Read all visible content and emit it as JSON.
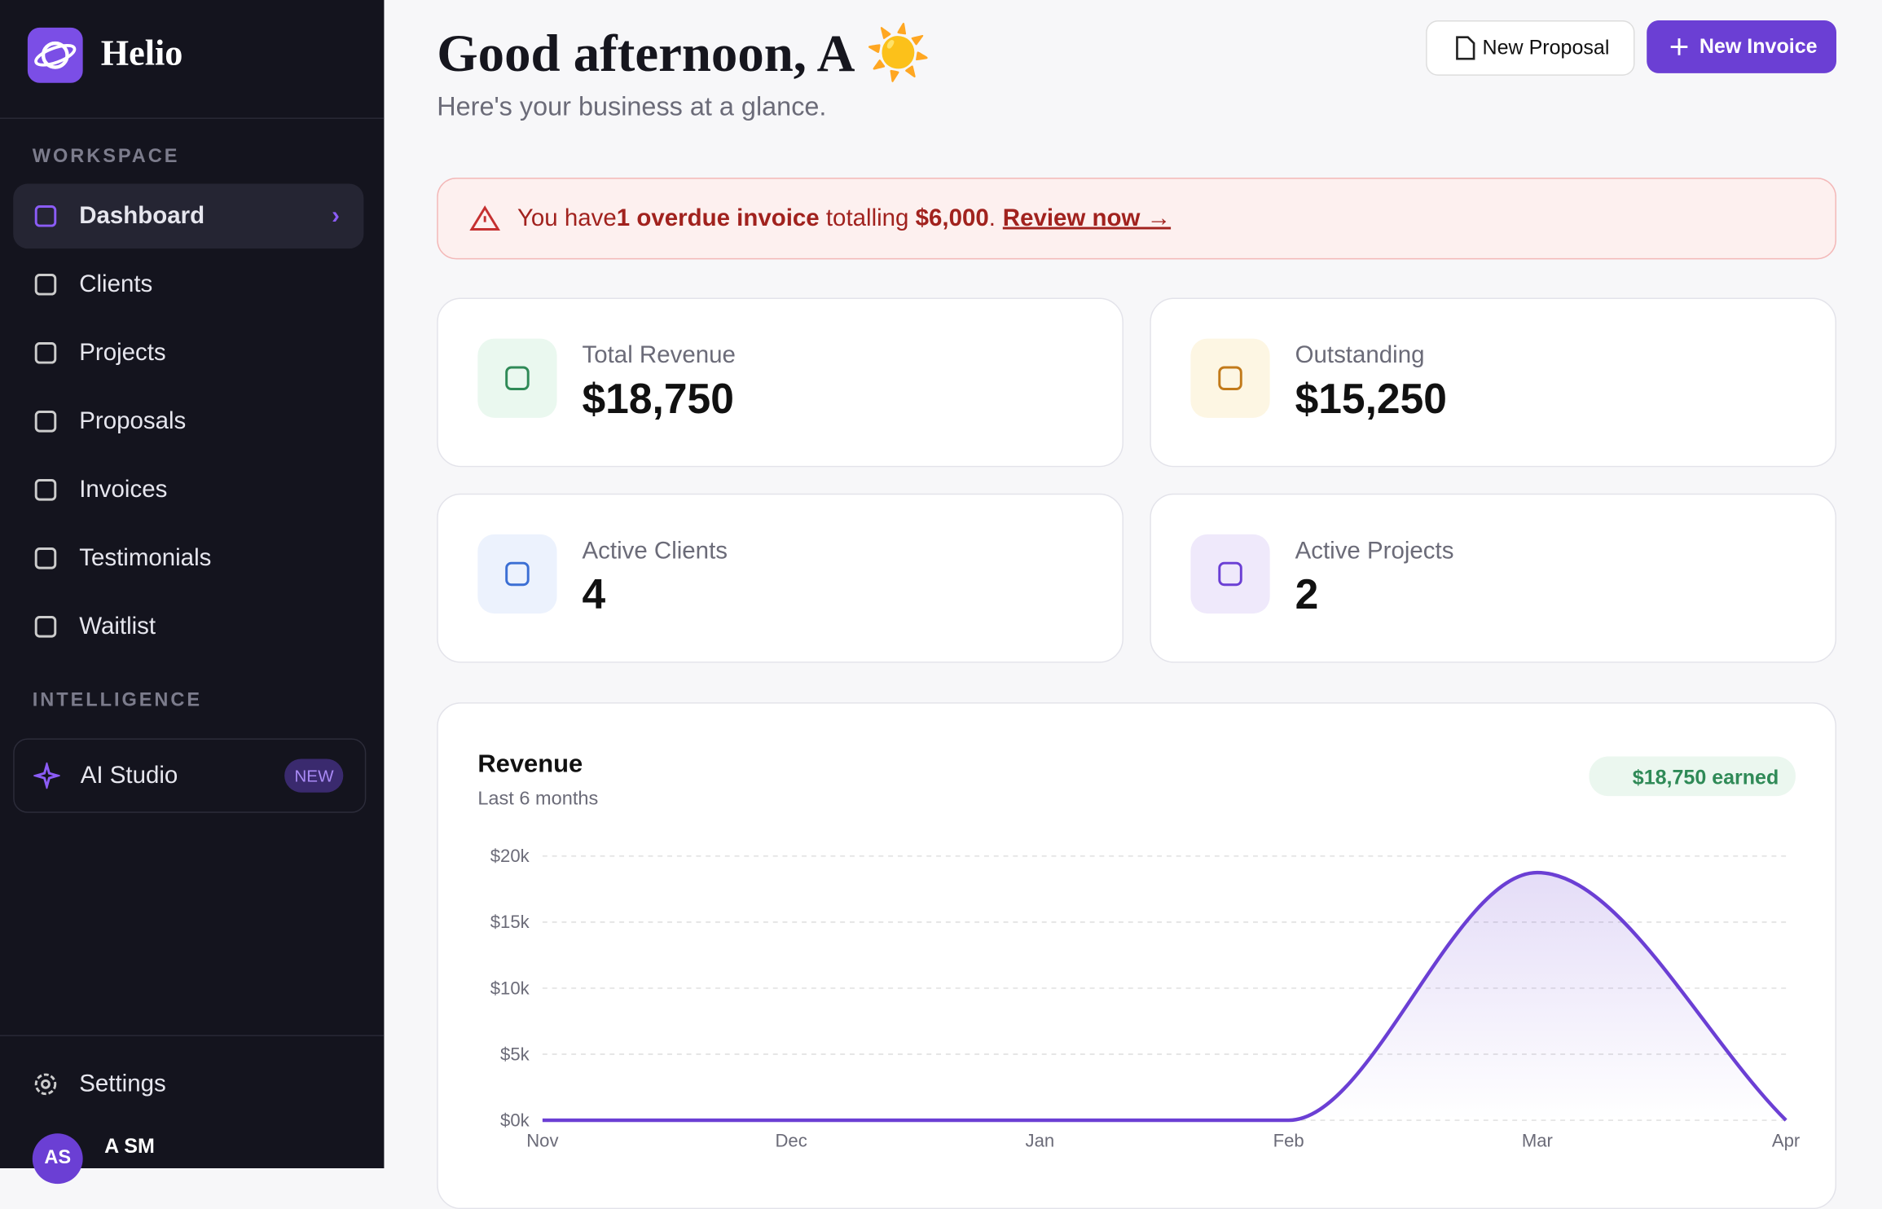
{
  "sidebar": {
    "brand": "Helio",
    "sections": [
      {
        "title": "WORKSPACE",
        "items": [
          "Dashboard",
          "Clients",
          "Projects",
          "Proposals",
          "Invoices",
          "Testimonials",
          "Waitlist"
        ]
      },
      {
        "title": "INTELLIGENCE",
        "items": [
          "AI Studio"
        ]
      }
    ],
    "badge": "NEW",
    "settings": "Settings",
    "user": {
      "initials": "AS",
      "name": "A SM"
    }
  },
  "header": {
    "title": "Good afternoon, A ☀️",
    "subtitle": "Here's your business at a glance.",
    "buttons": [
      "New Proposal",
      "New Invoice"
    ]
  },
  "alert": {
    "parts": [
      "You have ",
      "1 overdue invoice",
      " totalling ",
      "$6,000",
      "."
    ],
    "link": "Review now →"
  },
  "stats": [
    {
      "label": "Total Revenue",
      "value": "$18,750"
    },
    {
      "label": "Outstanding",
      "value": "$15,250"
    },
    {
      "label": "Active Clients",
      "value": "4"
    },
    {
      "label": "Active Projects",
      "value": "2"
    }
  ],
  "chart_data": {
    "type": "line",
    "title": "Revenue",
    "subtitle": "Last 6 months",
    "badge": "$18,750 earned",
    "categories": [
      "Nov",
      "Dec",
      "Jan",
      "Feb",
      "Mar",
      "Apr"
    ],
    "values": [
      0,
      0,
      0,
      0,
      18750,
      0
    ],
    "color": "#6b3fd4",
    "ylim": [
      0,
      20000
    ],
    "yticks": [
      {
        "value": 0,
        "label": "$0k"
      },
      {
        "value": 5000,
        "label": "$5k"
      },
      {
        "value": 10000,
        "label": "$10k"
      },
      {
        "value": 15000,
        "label": "$15k"
      },
      {
        "value": 20000,
        "label": "$20k"
      }
    ],
    "grid": true
  }
}
